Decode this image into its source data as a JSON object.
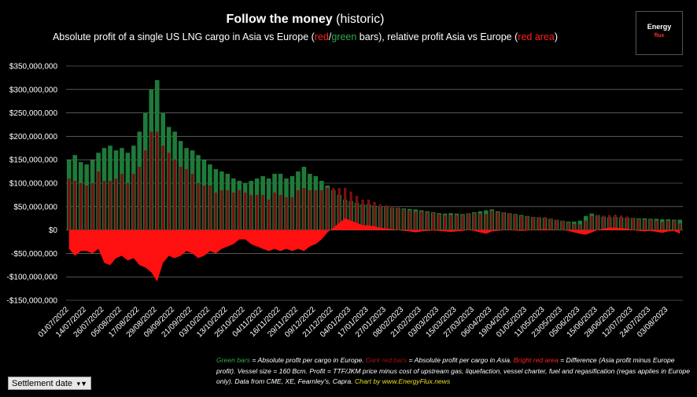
{
  "chart_data": {
    "type": "bar",
    "title": [
      {
        "text": "Follow the money",
        "bold": true
      },
      {
        "text": " (historic)"
      }
    ],
    "subtitle": [
      {
        "text": "Absolute profit of a single US LNG cargo in Asia vs Europe ("
      },
      {
        "text": "red",
        "color": "#ff2020"
      },
      {
        "text": "/"
      },
      {
        "text": "green",
        "color": "#2fa84f"
      },
      {
        "text": " bars), relative profit Asia vs Europe ("
      },
      {
        "text": "red area",
        "color": "#ff2020"
      },
      {
        "text": ")"
      }
    ],
    "logo": [
      "Energy",
      "flux"
    ],
    "filter_button": "Settlement date",
    "footnote": [
      {
        "text": "Green bars",
        "color": "#2fa84f"
      },
      {
        "text": " = Absolute profit per cargo in Europe. "
      },
      {
        "text": "Dark red bars",
        "color": "#a01010"
      },
      {
        "text": " = Absolute profit per cargo in Asia. "
      },
      {
        "text": "Bright red area",
        "color": "#ff2020"
      },
      {
        "text": " = Difference (Asia profit minus Europe profit). Vessel size = 160 Bcm. Profit = TTF/JKM price minus cost of upstream gas, liquefaction, vessel charter, fuel and regasification (regas applies in Europe only). Data from CME, XE, Fearnley's, Capra. "
      },
      {
        "text": "Chart by www.EnergyFlux.news",
        "color": "#e8e020"
      }
    ],
    "categories": [
      "01/07/2022",
      null,
      null,
      "14/07/2022",
      null,
      null,
      "26/07/2022",
      null,
      null,
      "05/08/2022",
      null,
      null,
      "17/08/2022",
      null,
      null,
      "29/08/2022",
      null,
      null,
      "09/09/2022",
      null,
      null,
      "21/09/2022",
      null,
      null,
      "03/10/2022",
      null,
      null,
      "13/10/2022",
      null,
      null,
      "25/10/2022",
      null,
      null,
      "04/11/2022",
      null,
      null,
      "16/11/2022",
      null,
      null,
      "29/11/2022",
      null,
      null,
      "09/12/2022",
      null,
      null,
      "21/12/2022",
      null,
      null,
      "04/01/2023",
      null,
      null,
      "17/01/2023",
      null,
      null,
      "27/01/2023",
      null,
      null,
      "08/02/2023",
      null,
      null,
      "21/02/2023",
      null,
      null,
      "03/03/2023",
      null,
      null,
      "15/03/2023",
      null,
      null,
      "27/03/2023",
      null,
      null,
      "06/04/2023",
      null,
      null,
      "19/04/2023",
      null,
      null,
      "01/05/2023",
      null,
      null,
      "11/05/2023",
      null,
      null,
      "23/05/2023",
      null,
      null,
      "05/06/2023",
      null,
      null,
      "15/06/2023",
      null,
      null,
      "28/06/2023",
      null,
      null,
      "12/07/2023",
      null,
      null,
      "24/07/2023",
      null,
      null,
      "03/08/2023",
      null,
      null
    ],
    "series": [
      {
        "color": "#1f7a3a",
        "kind": "bar",
        "values": [
          150000000.0,
          160000000.0,
          145000000.0,
          140000000.0,
          150000000.0,
          165000000.0,
          175000000.0,
          180000000.0,
          170000000.0,
          175000000.0,
          165000000.0,
          180000000.0,
          210000000.0,
          250000000.0,
          300000000.0,
          320000000.0,
          250000000.0,
          220000000.0,
          210000000.0,
          190000000.0,
          175000000.0,
          170000000.0,
          160000000.0,
          150000000.0,
          140000000.0,
          130000000.0,
          125000000.0,
          120000000.0,
          110000000.0,
          105000000.0,
          100000000.0,
          105000000.0,
          110000000.0,
          115000000.0,
          110000000.0,
          120000000.0,
          120000000.0,
          110000000.0,
          115000000.0,
          125000000.0,
          135000000.0,
          120000000.0,
          115000000.0,
          105000000.0,
          95000000.0,
          85000000.0,
          75000000.0,
          65000000.0,
          62000000.0,
          58000000.0,
          55000000.0,
          55000000.0,
          52000000.0,
          50000000.0,
          50000000.0,
          48000000.0,
          48000000.0,
          46000000.0,
          45000000.0,
          44000000.0,
          42000000.0,
          40000000.0,
          38000000.0,
          36000000.0,
          35000000.0,
          36000000.0,
          35000000.0,
          34000000.0,
          36000000.0,
          38000000.0,
          40000000.0,
          42000000.0,
          44000000.0,
          40000000.0,
          38000000.0,
          36000000.0,
          34000000.0,
          32000000.0,
          30000000.0,
          28000000.0,
          27000000.0,
          26000000.0,
          24000000.0,
          22000000.0,
          20000000.0,
          18000000.0,
          18000000.0,
          20000000.0,
          30000000.0,
          35000000.0,
          32000000.0,
          28000000.0,
          27000000.0,
          28000000.0,
          27000000.0,
          26000000.0,
          26000000.0,
          25000000.0,
          25000000.0,
          24000000.0,
          24000000.0,
          23000000.0,
          23000000.0,
          22000000.0,
          22000000.0
        ]
      },
      {
        "color": "#7a1010",
        "kind": "bar",
        "values": [
          110000000.0,
          105000000.0,
          100000000.0,
          95000000.0,
          100000000.0,
          125000000.0,
          105000000.0,
          105000000.0,
          110000000.0,
          120000000.0,
          100000000.0,
          120000000.0,
          135000000.0,
          170000000.0,
          210000000.0,
          210000000.0,
          180000000.0,
          165000000.0,
          150000000.0,
          135000000.0,
          130000000.0,
          120000000.0,
          100000000.0,
          95000000.0,
          95000000.0,
          80000000.0,
          85000000.0,
          85000000.0,
          80000000.0,
          85000000.0,
          80000000.0,
          75000000.0,
          75000000.0,
          75000000.0,
          65000000.0,
          80000000.0,
          75000000.0,
          70000000.0,
          70000000.0,
          85000000.0,
          90000000.0,
          85000000.0,
          85000000.0,
          85000000.0,
          90000000.0,
          90000000.0,
          90000000.0,
          90000000.0,
          82000000.0,
          73000000.0,
          65000000.0,
          65000000.0,
          60000000.0,
          55000000.0,
          53000000.0,
          50000000.0,
          48000000.0,
          44000000.0,
          42000000.0,
          39000000.0,
          39000000.0,
          38000000.0,
          37000000.0,
          34000000.0,
          32000000.0,
          32000000.0,
          32000000.0,
          32000000.0,
          36000000.0,
          36000000.0,
          35000000.0,
          34000000.0,
          41000000.0,
          38000000.0,
          38000000.0,
          36000000.0,
          33000000.0,
          30000000.0,
          29000000.0,
          28000000.0,
          28000000.0,
          28000000.0,
          25000000.0,
          22000000.0,
          20000000.0,
          16000000.0,
          13000000.0,
          12000000.0,
          20000000.0,
          30000000.0,
          32000000.0,
          31000000.0,
          32000000.0,
          33000000.0,
          31000000.0,
          29000000.0,
          26000000.0,
          23000000.0,
          22000000.0,
          22000000.0,
          20000000.0,
          17000000.0,
          20000000.0,
          20000000.0,
          14000000.0
        ]
      },
      {
        "color": "#ff1010",
        "kind": "area",
        "values": [
          -40000000.0,
          -55000000.0,
          -45000000.0,
          -45000000.0,
          -50000000.0,
          -40000000.0,
          -70000000.0,
          -75000000.0,
          -60000000.0,
          -55000000.0,
          -65000000.0,
          -60000000.0,
          -75000000.0,
          -80000000.0,
          -90000000.0,
          -110000000.0,
          -70000000.0,
          -55000000.0,
          -60000000.0,
          -55000000.0,
          -45000000.0,
          -50000000.0,
          -60000000.0,
          -55000000.0,
          -45000000.0,
          -50000000.0,
          -40000000.0,
          -35000000.0,
          -30000000.0,
          -20000000.0,
          -20000000.0,
          -30000000.0,
          -35000000.0,
          -40000000.0,
          -45000000.0,
          -40000000.0,
          -45000000.0,
          -40000000.0,
          -45000000.0,
          -40000000.0,
          -45000000.0,
          -35000000.0,
          -30000000.0,
          -20000000.0,
          -5000000.0,
          5000000.0,
          15000000.0,
          25000000.0,
          20000000.0,
          15000000.0,
          10000000.0,
          10000000.0,
          8000000.0,
          5000000.0,
          3000000.0,
          2000000.0,
          0,
          -2000000.0,
          -3000000.0,
          -5000000.0,
          -3000000.0,
          -2000000.0,
          -1000000.0,
          -2000000.0,
          -3000000.0,
          -4000000.0,
          -3000000.0,
          -2000000.0,
          0,
          -2000000.0,
          -5000000.0,
          -8000000.0,
          -3000000.0,
          -2000000.0,
          0,
          0,
          -1000000.0,
          -2000000.0,
          -1000000.0,
          0,
          1000000.0,
          2000000.0,
          1000000.0,
          0,
          0,
          -2000000.0,
          -5000000.0,
          -8000000.0,
          -10000000.0,
          -5000000.0,
          0,
          3000000.0,
          5000000.0,
          5000000.0,
          4000000.0,
          3000000.0,
          0,
          -2000000.0,
          -3000000.0,
          -2000000.0,
          -4000000.0,
          -6000000.0,
          -3000000.0,
          -2000000.0,
          -8000000.0
        ]
      }
    ],
    "ylim": [
      -150000000.0,
      350000000.0
    ],
    "yticks": [
      {
        "value": -150000000.0,
        "label": "-$150,000,000"
      },
      {
        "value": -100000000.0,
        "label": "-$100,000,000"
      },
      {
        "value": -50000000.0,
        "label": "-$50,000,000"
      },
      {
        "value": 0,
        "label": "$0"
      },
      {
        "value": 50000000.0,
        "label": "$50,000,000"
      },
      {
        "value": 100000000.0,
        "label": "$100,000,000"
      },
      {
        "value": 150000000.0,
        "label": "$150,000,000"
      },
      {
        "value": 200000000.0,
        "label": "$200,000,000"
      },
      {
        "value": 250000000.0,
        "label": "$250,000,000"
      },
      {
        "value": 300000000.0,
        "label": "$300,000,000"
      },
      {
        "value": 350000000.0,
        "label": "$350,000,000"
      }
    ],
    "grid": true
  }
}
